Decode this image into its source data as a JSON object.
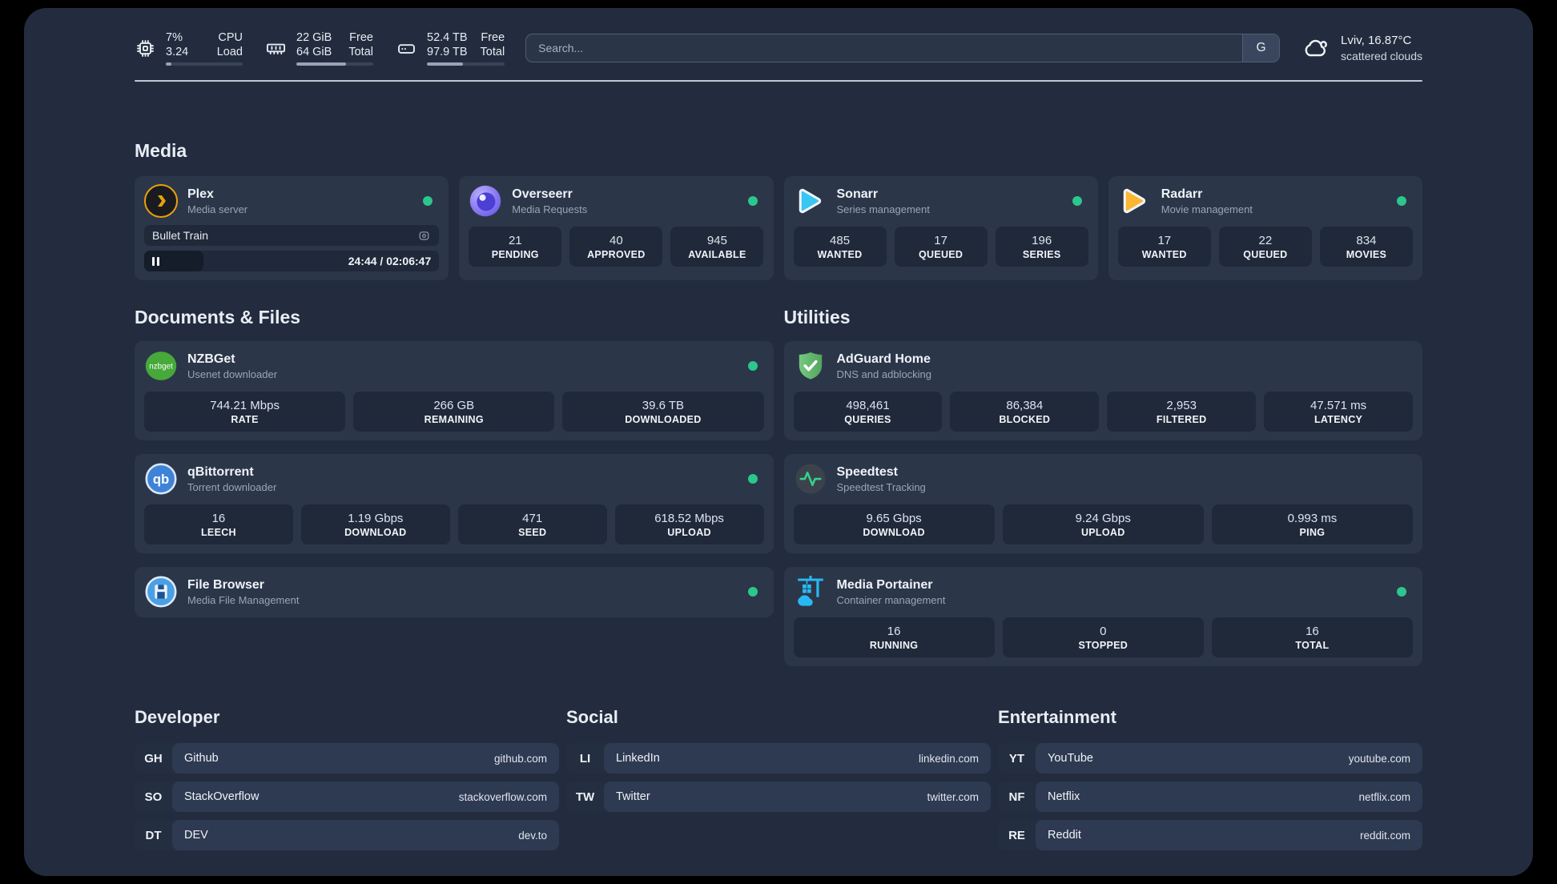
{
  "colors": {
    "page-bg": "#222c3e",
    "card-bg": "#2b3649",
    "box-bg": "#20293a",
    "link-outer": "#242e41",
    "link-inner": "#2e3a51",
    "text-primary": "#edf1f6",
    "text-muted": "#9aa5b6",
    "status-online": "#2bc78d",
    "divider": "#ccd5e0",
    "search-border": "#4f5d75",
    "search-bg": "#2a3547",
    "search-button-bg": "#39465e",
    "track-bg": "#39445a",
    "track-fill": "#9aa4b6",
    "plex-fill": "#151c2a"
  },
  "header": {
    "stats": [
      {
        "name": "cpu",
        "values": [
          "7%",
          "3.24"
        ],
        "labels": [
          "CPU",
          "Load"
        ],
        "percent": 7
      },
      {
        "name": "memory",
        "values": [
          "22 GiB",
          "64 GiB"
        ],
        "labels": [
          "Free",
          "Total"
        ],
        "percent": 65
      },
      {
        "name": "disk",
        "values": [
          "52.4 TB",
          "97.9 TB"
        ],
        "labels": [
          "Free",
          "Total"
        ],
        "percent": 46
      }
    ],
    "search": {
      "placeholder": "Search...",
      "provider": "G"
    },
    "weather": {
      "location": "Lviv, 16.87°C",
      "condition": "scattered clouds"
    }
  },
  "media": {
    "title": "Media",
    "plex": {
      "name": "Plex",
      "desc": "Media server",
      "status": "online",
      "now_playing": "Bullet Train",
      "time": "24:44 / 02:06:47",
      "percent": 20
    },
    "overseerr": {
      "name": "Overseerr",
      "desc": "Media Requests",
      "status": "online",
      "stats": [
        {
          "v": "21",
          "l": "PENDING"
        },
        {
          "v": "40",
          "l": "APPROVED"
        },
        {
          "v": "945",
          "l": "AVAILABLE"
        }
      ]
    },
    "sonarr": {
      "name": "Sonarr",
      "desc": "Series management",
      "status": "online",
      "stats": [
        {
          "v": "485",
          "l": "WANTED"
        },
        {
          "v": "17",
          "l": "QUEUED"
        },
        {
          "v": "196",
          "l": "SERIES"
        }
      ]
    },
    "radarr": {
      "name": "Radarr",
      "desc": "Movie management",
      "status": "online",
      "stats": [
        {
          "v": "17",
          "l": "WANTED"
        },
        {
          "v": "22",
          "l": "QUEUED"
        },
        {
          "v": "834",
          "l": "MOVIES"
        }
      ]
    }
  },
  "documents": {
    "title": "Documents & Files",
    "nzbget": {
      "name": "NZBGet",
      "desc": "Usenet downloader",
      "status": "online",
      "stats": [
        {
          "v": "744.21 Mbps",
          "l": "RATE"
        },
        {
          "v": "266 GB",
          "l": "REMAINING"
        },
        {
          "v": "39.6 TB",
          "l": "DOWNLOADED"
        }
      ]
    },
    "qbittorrent": {
      "name": "qBittorrent",
      "desc": "Torrent downloader",
      "status": "online",
      "stats": [
        {
          "v": "16",
          "l": "LEECH"
        },
        {
          "v": "1.19 Gbps",
          "l": "DOWNLOAD"
        },
        {
          "v": "471",
          "l": "SEED"
        },
        {
          "v": "618.52 Mbps",
          "l": "UPLOAD"
        }
      ]
    },
    "filebrowser": {
      "name": "File Browser",
      "desc": "Media File Management",
      "status": "online"
    }
  },
  "utilities": {
    "title": "Utilities",
    "adguard": {
      "name": "AdGuard Home",
      "desc": "DNS and adblocking",
      "stats": [
        {
          "v": "498,461",
          "l": "QUERIES"
        },
        {
          "v": "86,384",
          "l": "BLOCKED"
        },
        {
          "v": "2,953",
          "l": "FILTERED"
        },
        {
          "v": "47.571 ms",
          "l": "LATENCY"
        }
      ]
    },
    "speedtest": {
      "name": "Speedtest",
      "desc": "Speedtest Tracking",
      "stats": [
        {
          "v": "9.65 Gbps",
          "l": "DOWNLOAD"
        },
        {
          "v": "9.24 Gbps",
          "l": "UPLOAD"
        },
        {
          "v": "0.993 ms",
          "l": "PING"
        }
      ]
    },
    "portainer": {
      "name": "Media Portainer",
      "desc": "Container management",
      "status": "online",
      "stats": [
        {
          "v": "16",
          "l": "RUNNING"
        },
        {
          "v": "0",
          "l": "STOPPED"
        },
        {
          "v": "16",
          "l": "TOTAL"
        }
      ]
    }
  },
  "developer": {
    "title": "Developer",
    "links": [
      {
        "abbr": "GH",
        "name": "Github",
        "url": "github.com"
      },
      {
        "abbr": "SO",
        "name": "StackOverflow",
        "url": "stackoverflow.com"
      },
      {
        "abbr": "DT",
        "name": "DEV",
        "url": "dev.to"
      }
    ]
  },
  "social": {
    "title": "Social",
    "links": [
      {
        "abbr": "LI",
        "name": "LinkedIn",
        "url": "linkedin.com"
      },
      {
        "abbr": "TW",
        "name": "Twitter",
        "url": "twitter.com"
      }
    ]
  },
  "entertainment": {
    "title": "Entertainment",
    "links": [
      {
        "abbr": "YT",
        "name": "YouTube",
        "url": "youtube.com"
      },
      {
        "abbr": "NF",
        "name": "Netflix",
        "url": "netflix.com"
      },
      {
        "abbr": "RE",
        "name": "Reddit",
        "url": "reddit.com"
      }
    ]
  }
}
